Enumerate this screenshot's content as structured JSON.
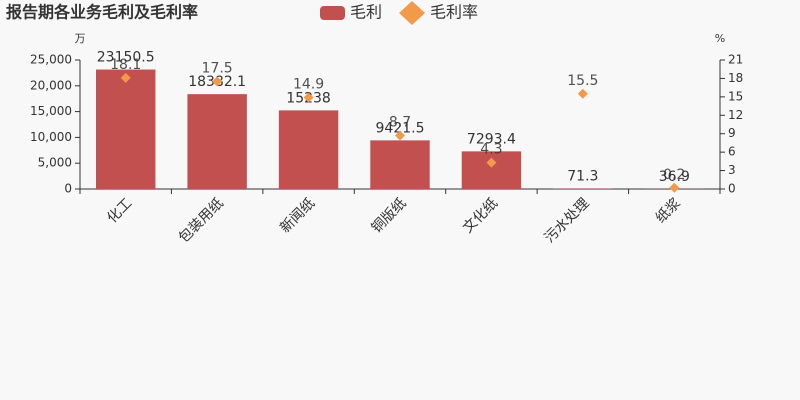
{
  "chart_data": {
    "type": "bar",
    "title": "报告期各业务毛利及毛利率",
    "categories": [
      "化工",
      "包装用纸",
      "新闻纸",
      "铜版纸",
      "文化纸",
      "污水处理",
      "纸浆"
    ],
    "series": [
      {
        "name": "毛利",
        "type": "bar",
        "color": "#c1504e",
        "values": [
          23150.5,
          18382.1,
          15238,
          9421.5,
          7293.4,
          71.3,
          36.9
        ]
      },
      {
        "name": "毛利率",
        "type": "scatter",
        "axis": "y2",
        "color": "#f29a4a",
        "values": [
          18.1,
          17.5,
          14.9,
          8.7,
          4.3,
          15.5,
          0.2
        ]
      }
    ],
    "ylabel": "万",
    "y2label": "%",
    "ylim": [
      0,
      25000
    ],
    "yticks": [
      0,
      {
        "value": 5000,
        "label": "5,000"
      },
      {
        "value": 10000,
        "label": "10,000"
      },
      {
        "value": 15000,
        "label": "15,000"
      },
      {
        "value": 20000,
        "label": "20,000"
      },
      {
        "value": 25000,
        "label": "25,000"
      }
    ],
    "y2lim": [
      0,
      21
    ],
    "y2ticks": [
      0,
      3,
      6,
      9,
      12,
      15,
      18,
      21
    ]
  }
}
